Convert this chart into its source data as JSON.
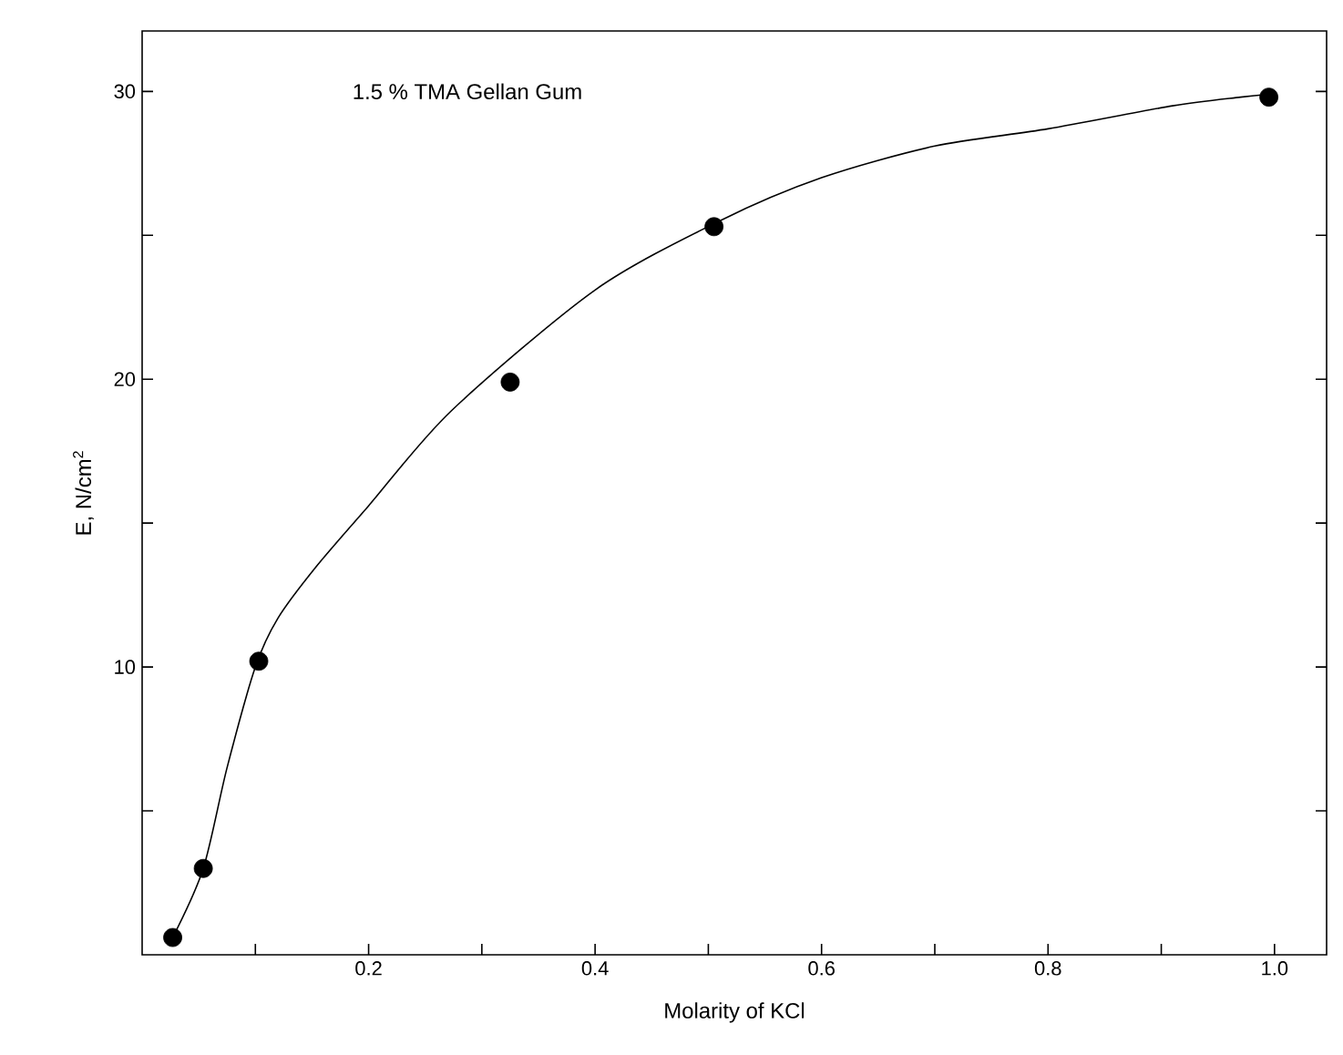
{
  "chart_data": {
    "type": "scatter",
    "xlabel": "Molarity of KCl",
    "ylabel": "E,  N/cm$^{2}$",
    "annotations": [
      "1.5 % TMA Gellan Gum"
    ],
    "xlim": [
      0,
      1.046
    ],
    "ylim": [
      0,
      32.1
    ],
    "xticks": [
      {
        "value": 0.1,
        "label": null
      },
      0.2,
      {
        "value": 0.3,
        "label": null
      },
      0.4,
      {
        "value": 0.5,
        "label": null
      },
      0.6,
      {
        "value": 0.7,
        "label": null
      },
      0.8,
      {
        "value": 0.9,
        "label": null
      },
      {
        "value": 1.0,
        "label": "1.0"
      }
    ],
    "yticks": [
      {
        "value": 5,
        "label": null
      },
      10,
      {
        "value": 15,
        "label": null
      },
      20,
      {
        "value": 25,
        "label": null
      },
      30
    ],
    "grid": false,
    "series": [
      {
        "marker": "circle",
        "color": "#000000",
        "x": [
          0.027,
          0.054,
          0.103,
          0.325,
          0.505,
          0.995
        ],
        "values": [
          0.6,
          3.0,
          10.2,
          19.9,
          25.3,
          29.8
        ]
      },
      {
        "type": "line",
        "marker": "none",
        "line_style": "solid",
        "color": "#000000",
        "x": [
          0.027,
          0.054,
          0.075,
          0.1,
          0.12,
          0.154,
          0.2,
          0.273,
          0.4,
          0.51,
          0.6,
          0.7,
          0.8,
          0.91,
          0.97,
          0.995
        ],
        "values": [
          0.6,
          3.0,
          6.5,
          10.0,
          11.7,
          13.5,
          15.6,
          18.9,
          23.1,
          25.5,
          27.0,
          28.1,
          28.7,
          29.5,
          29.8,
          29.9
        ]
      }
    ]
  }
}
